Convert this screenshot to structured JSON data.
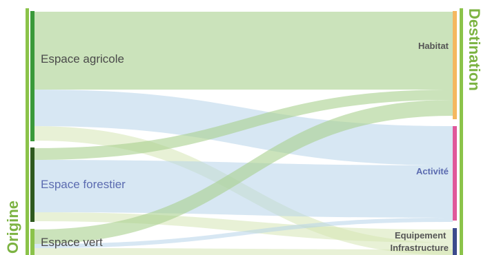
{
  "diagram": {
    "type": "sankey",
    "left_axis_label": "Origine",
    "right_axis_label": "Destination",
    "sources": [
      {
        "id": "agricole",
        "label": "Espace agricole",
        "label_color": "#4a4a4a",
        "bar_color": "#3a9a3a"
      },
      {
        "id": "forestier",
        "label": "Espace forestier",
        "label_color": "#5b6bb0",
        "bar_color": "#2f5a1f"
      },
      {
        "id": "vert",
        "label": "Espace vert",
        "label_color": "#4a4a4a",
        "bar_color": "#8bc34a"
      }
    ],
    "destinations": [
      {
        "id": "habitat",
        "label": "Habitat",
        "label_color": "#555555",
        "bar_color": "#f4b860"
      },
      {
        "id": "activite",
        "label": "Activité",
        "label_color": "#5b6bb0",
        "bar_color": "#e0589a"
      },
      {
        "id": "equip",
        "label": "Equipement Infrastructure",
        "label_color": "#555555",
        "bar_color": "#3b4a8c"
      }
    ],
    "flows": [
      {
        "from": "agricole",
        "to": "habitat",
        "color": "#a8d08d"
      },
      {
        "from": "agricole",
        "to": "activite",
        "color": "#b7d4ea"
      },
      {
        "from": "agricole",
        "to": "equip",
        "color": "#d6e6b4"
      },
      {
        "from": "forestier",
        "to": "habitat",
        "color": "#a8d08d"
      },
      {
        "from": "forestier",
        "to": "activite",
        "color": "#b7d4ea"
      },
      {
        "from": "forestier",
        "to": "equip",
        "color": "#d6e6b4"
      },
      {
        "from": "vert",
        "to": "habitat",
        "color": "#a8d08d"
      },
      {
        "from": "vert",
        "to": "activite",
        "color": "#b7d4ea"
      },
      {
        "from": "vert",
        "to": "equip",
        "color": "#d6e6b4"
      }
    ]
  }
}
